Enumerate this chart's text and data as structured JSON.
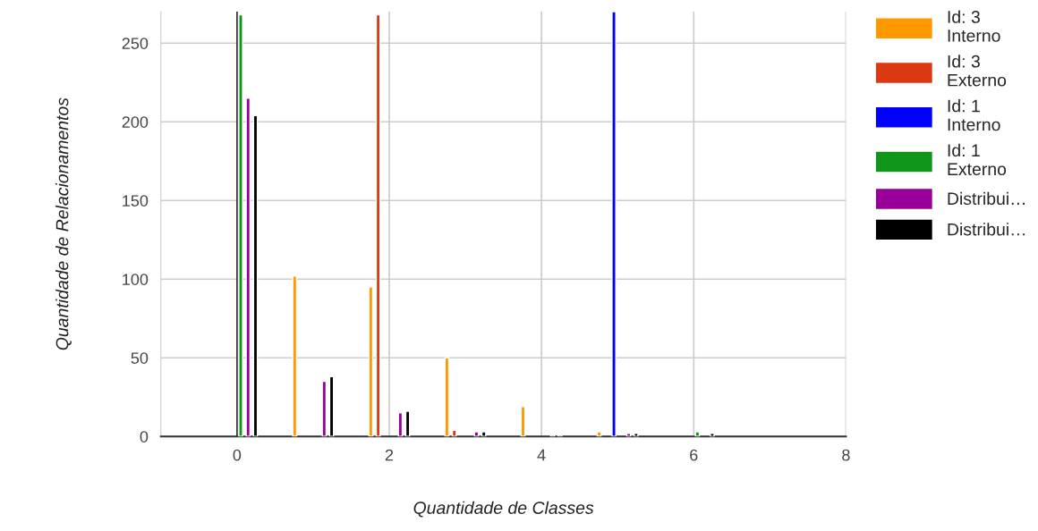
{
  "chart_data": {
    "type": "bar",
    "xlabel": "Quantidade de Classes",
    "ylabel": "Quantidade de Relacionamentos",
    "x": [
      0,
      1,
      2,
      3,
      4,
      5,
      6
    ],
    "series": [
      {
        "name": "Id: 3\nInterno",
        "color": "#ff9900",
        "values": [
          null,
          102,
          95,
          50,
          19,
          3,
          null
        ]
      },
      {
        "name": "Id: 3\nExterno",
        "color": "#dc3912",
        "values": [
          null,
          null,
          268,
          4,
          null,
          null,
          null
        ]
      },
      {
        "name": "Id: 1\nInterno",
        "color": "#0000ff",
        "values": [
          null,
          null,
          null,
          null,
          null,
          270,
          null
        ]
      },
      {
        "name": "Id: 1\nExterno",
        "color": "#109618",
        "values": [
          268,
          null,
          null,
          null,
          null,
          null,
          3
        ]
      },
      {
        "name": "Distribui…",
        "color": "#990099",
        "values": [
          215,
          35,
          15,
          3,
          1,
          2,
          null
        ]
      },
      {
        "name": "Distribui…",
        "color": "#000000",
        "values": [
          204,
          38,
          16,
          3,
          1,
          2,
          2
        ]
      }
    ],
    "xlim": [
      -1,
      8
    ],
    "xticks": [
      0,
      2,
      4,
      6,
      8
    ],
    "ylim": [
      0,
      270
    ],
    "yticks": [
      0,
      50,
      100,
      150,
      200,
      250
    ],
    "grid": true,
    "legend": "right"
  }
}
